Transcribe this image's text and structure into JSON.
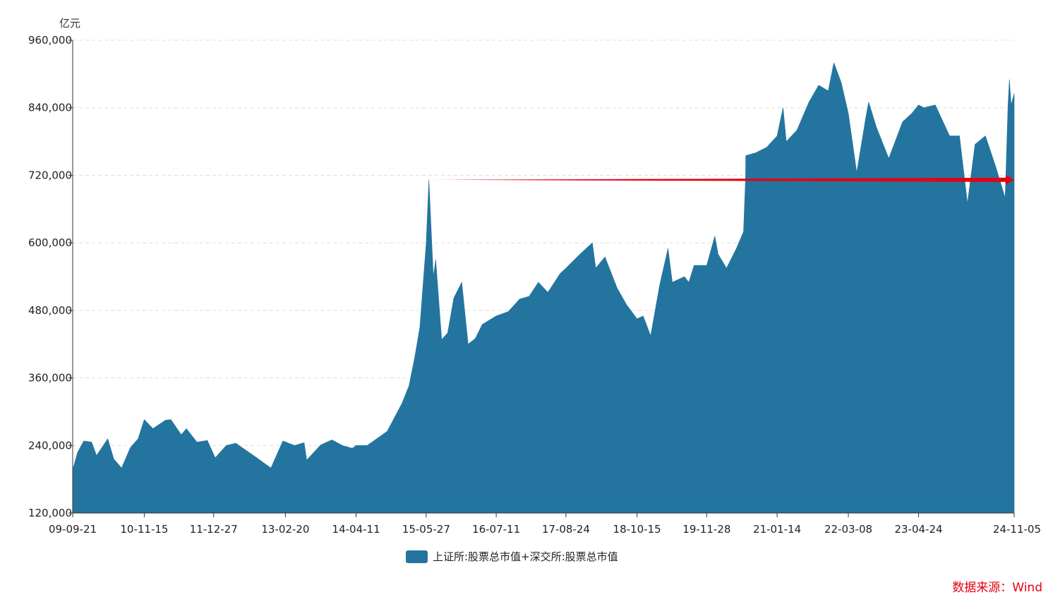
{
  "chart_data": {
    "type": "area",
    "y_unit": "亿元",
    "yticks": [
      "120,000",
      "240,000",
      "360,000",
      "480,000",
      "600,000",
      "720,000",
      "840,000",
      "960,000"
    ],
    "ylim": [
      120000,
      960000
    ],
    "grid": true,
    "legend_position": "bottom-center",
    "x_start": "2009-09-21",
    "x_end": "2024-11-05",
    "xticks": [
      {
        "date": "2009-09-21",
        "label": "09-09-21"
      },
      {
        "date": "2010-11-15",
        "label": "10-11-15"
      },
      {
        "date": "2011-12-27",
        "label": "11-12-27"
      },
      {
        "date": "2013-02-20",
        "label": "13-02-20"
      },
      {
        "date": "2014-04-11",
        "label": "14-04-11"
      },
      {
        "date": "2015-05-27",
        "label": "15-05-27"
      },
      {
        "date": "2016-07-11",
        "label": "16-07-11"
      },
      {
        "date": "2017-08-24",
        "label": "17-08-24"
      },
      {
        "date": "2018-10-15",
        "label": "18-10-15"
      },
      {
        "date": "2019-11-28",
        "label": "19-11-28"
      },
      {
        "date": "2021-01-14",
        "label": "21-01-14"
      },
      {
        "date": "2022-03-08",
        "label": "22-03-08"
      },
      {
        "date": "2023-04-24",
        "label": "23-04-24"
      },
      {
        "date": "2024-11-05",
        "label": "24-11-05"
      }
    ],
    "series": [
      {
        "name": "上证所:股票总市值+深交所:股票总市值",
        "color": "#23759f",
        "points": [
          [
            "2009-09-21",
            197000
          ],
          [
            "2009-10-20",
            228000
          ],
          [
            "2009-11-25",
            248000
          ],
          [
            "2010-01-10",
            246000
          ],
          [
            "2010-02-08",
            222000
          ],
          [
            "2010-04-15",
            252000
          ],
          [
            "2010-05-20",
            216000
          ],
          [
            "2010-07-05",
            200000
          ],
          [
            "2010-08-25",
            236000
          ],
          [
            "2010-10-10",
            252000
          ],
          [
            "2010-11-15",
            286000
          ],
          [
            "2011-01-05",
            270000
          ],
          [
            "2011-03-20",
            285000
          ],
          [
            "2011-04-20",
            286000
          ],
          [
            "2011-06-20",
            259000
          ],
          [
            "2011-07-20",
            270000
          ],
          [
            "2011-09-20",
            246000
          ],
          [
            "2011-11-20",
            249000
          ],
          [
            "2012-01-05",
            218000
          ],
          [
            "2012-03-10",
            240000
          ],
          [
            "2012-05-05",
            244000
          ],
          [
            "2012-07-20",
            228000
          ],
          [
            "2012-09-10",
            217000
          ],
          [
            "2012-11-27",
            200000
          ],
          [
            "2013-02-05",
            248000
          ],
          [
            "2013-04-15",
            240000
          ],
          [
            "2013-06-10",
            245000
          ],
          [
            "2013-06-25",
            214000
          ],
          [
            "2013-09-15",
            241000
          ],
          [
            "2013-11-20",
            250000
          ],
          [
            "2014-01-20",
            240000
          ],
          [
            "2014-03-20",
            235000
          ],
          [
            "2014-04-11",
            240000
          ],
          [
            "2014-06-15",
            240000
          ],
          [
            "2014-08-10",
            252000
          ],
          [
            "2014-10-10",
            265000
          ],
          [
            "2014-12-10",
            300000
          ],
          [
            "2015-01-05",
            315000
          ],
          [
            "2015-02-15",
            346000
          ],
          [
            "2015-03-20",
            395000
          ],
          [
            "2015-04-20",
            450000
          ],
          [
            "2015-05-27",
            600000
          ],
          [
            "2015-06-12",
            712000
          ],
          [
            "2015-07-08",
            540000
          ],
          [
            "2015-07-22",
            570000
          ],
          [
            "2015-08-26",
            428000
          ],
          [
            "2015-09-30",
            440000
          ],
          [
            "2015-11-05",
            502000
          ],
          [
            "2015-12-22",
            530000
          ],
          [
            "2016-01-28",
            420000
          ],
          [
            "2016-03-10",
            430000
          ],
          [
            "2016-04-20",
            455000
          ],
          [
            "2016-07-11",
            470000
          ],
          [
            "2016-09-20",
            478000
          ],
          [
            "2016-11-25",
            500000
          ],
          [
            "2017-01-20",
            505000
          ],
          [
            "2017-03-15",
            530000
          ],
          [
            "2017-05-10",
            512000
          ],
          [
            "2017-07-20",
            545000
          ],
          [
            "2017-08-24",
            555000
          ],
          [
            "2017-11-15",
            580000
          ],
          [
            "2018-01-26",
            600000
          ],
          [
            "2018-02-15",
            555000
          ],
          [
            "2018-04-10",
            575000
          ],
          [
            "2018-06-20",
            520000
          ],
          [
            "2018-08-15",
            490000
          ],
          [
            "2018-10-15",
            465000
          ],
          [
            "2018-11-20",
            470000
          ],
          [
            "2019-01-03",
            435000
          ],
          [
            "2019-02-25",
            525000
          ],
          [
            "2019-04-15",
            590000
          ],
          [
            "2019-05-10",
            530000
          ],
          [
            "2019-07-20",
            540000
          ],
          [
            "2019-08-15",
            530000
          ],
          [
            "2019-09-15",
            560000
          ],
          [
            "2019-11-28",
            560000
          ],
          [
            "2020-01-15",
            612000
          ],
          [
            "2020-02-03",
            580000
          ],
          [
            "2020-03-23",
            555000
          ],
          [
            "2020-05-20",
            590000
          ],
          [
            "2020-07-01",
            620000
          ],
          [
            "2020-07-13",
            715000
          ],
          [
            "2020-07-14",
            755000
          ],
          [
            "2020-09-10",
            760000
          ],
          [
            "2020-11-15",
            770000
          ],
          [
            "2021-01-14",
            790000
          ],
          [
            "2021-02-18",
            840000
          ],
          [
            "2021-03-09",
            780000
          ],
          [
            "2021-05-10",
            800000
          ],
          [
            "2021-07-20",
            850000
          ],
          [
            "2021-09-15",
            880000
          ],
          [
            "2021-11-10",
            870000
          ],
          [
            "2021-12-13",
            920000
          ],
          [
            "2022-01-25",
            885000
          ],
          [
            "2022-03-08",
            830000
          ],
          [
            "2022-04-26",
            725000
          ],
          [
            "2022-06-20",
            825000
          ],
          [
            "2022-07-05",
            850000
          ],
          [
            "2022-08-20",
            805000
          ],
          [
            "2022-10-31",
            750000
          ],
          [
            "2023-01-20",
            815000
          ],
          [
            "2023-03-15",
            830000
          ],
          [
            "2023-04-24",
            845000
          ],
          [
            "2023-05-25",
            840000
          ],
          [
            "2023-07-31",
            845000
          ],
          [
            "2023-09-15",
            815000
          ],
          [
            "2023-10-23",
            790000
          ],
          [
            "2023-12-20",
            790000
          ],
          [
            "2024-02-05",
            670000
          ],
          [
            "2024-03-20",
            775000
          ],
          [
            "2024-05-20",
            790000
          ],
          [
            "2024-07-20",
            735000
          ],
          [
            "2024-09-13",
            680000
          ],
          [
            "2024-09-30",
            845000
          ],
          [
            "2024-10-08",
            890000
          ],
          [
            "2024-10-18",
            845000
          ],
          [
            "2024-11-05",
            865000
          ]
        ]
      }
    ],
    "annotation": {
      "type": "arrow",
      "color": "#e60012",
      "from": {
        "date": "2015-06-12",
        "value": 712000
      },
      "to": {
        "date": "2024-11-05",
        "value": 712000
      }
    }
  },
  "legend": {
    "label": "上证所:股票总市值+深交所:股票总市值",
    "color": "#23759f"
  },
  "source": {
    "text": "数据来源：Wind"
  }
}
